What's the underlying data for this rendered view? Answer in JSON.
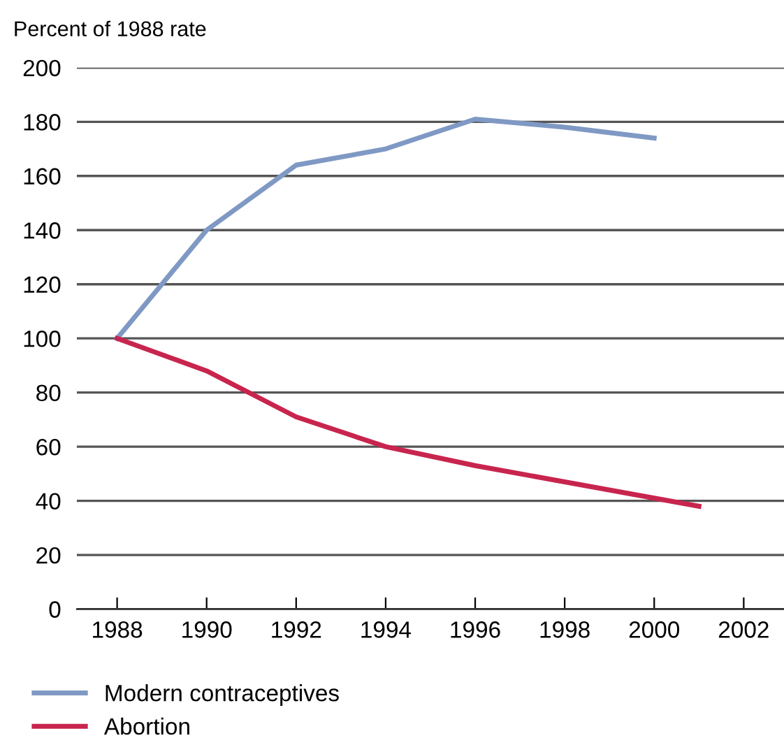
{
  "chart_data": {
    "type": "line",
    "ylabel": "Percent of 1988 rate",
    "series": [
      {
        "name": "Modern contraceptives",
        "color": "#7f99c4",
        "x": [
          1988,
          1990,
          1992,
          1994,
          1996,
          1998,
          2000
        ],
        "values": [
          100,
          140,
          164,
          170,
          181,
          178,
          174
        ]
      },
      {
        "name": "Abortion",
        "color": "#c8254e",
        "x": [
          1988,
          1990,
          1992,
          1994,
          1996,
          1998,
          2000,
          2001
        ],
        "values": [
          100,
          88,
          71,
          60,
          53,
          47,
          41,
          38
        ]
      }
    ],
    "xlim": [
      1987.1,
      2002.9
    ],
    "xticks": [
      1988,
      1990,
      1992,
      1994,
      1996,
      1998,
      2000,
      2002
    ],
    "ylim": [
      0,
      200
    ],
    "yticks": [
      0,
      20,
      40,
      60,
      80,
      100,
      120,
      140,
      160,
      180,
      200
    ],
    "grid": "y",
    "legend": "bottom",
    "marker": "none",
    "line_style": "solid"
  }
}
